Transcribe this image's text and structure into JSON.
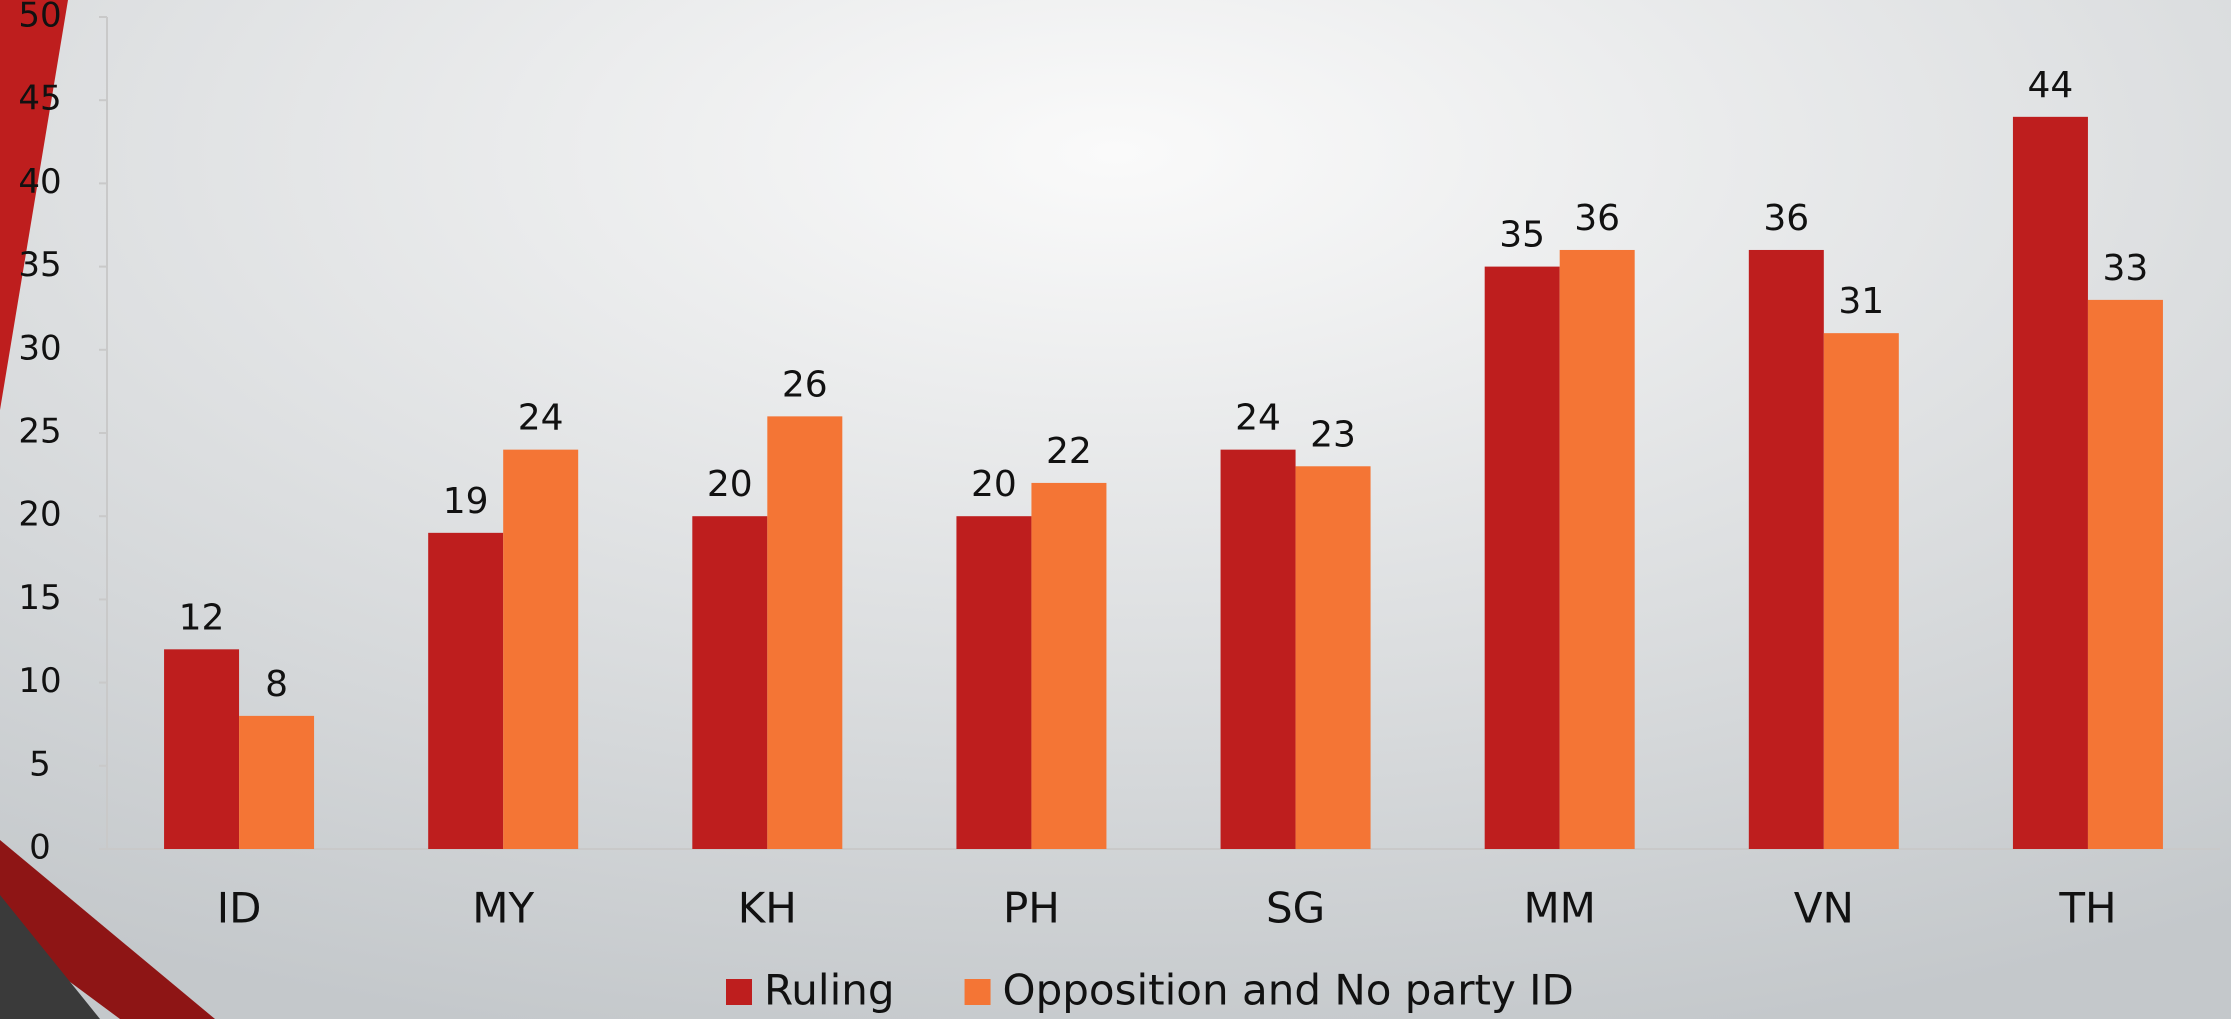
{
  "chart_data": {
    "type": "bar",
    "categories": [
      "ID",
      "MY",
      "KH",
      "PH",
      "SG",
      "MM",
      "VN",
      "TH"
    ],
    "series": [
      {
        "name": "Ruling",
        "color": "#be1e1e",
        "values": [
          12,
          19,
          20,
          20,
          24,
          35,
          36,
          44
        ]
      },
      {
        "name": "Opposition and No party ID",
        "color": "#f47535",
        "values": [
          8,
          24,
          26,
          22,
          23,
          36,
          31,
          33
        ]
      }
    ],
    "ylim": [
      0,
      50
    ],
    "yticks": [
      0,
      5,
      10,
      15,
      20,
      25,
      30,
      35,
      40,
      45,
      50
    ],
    "grid": false,
    "legend": "bottom"
  }
}
